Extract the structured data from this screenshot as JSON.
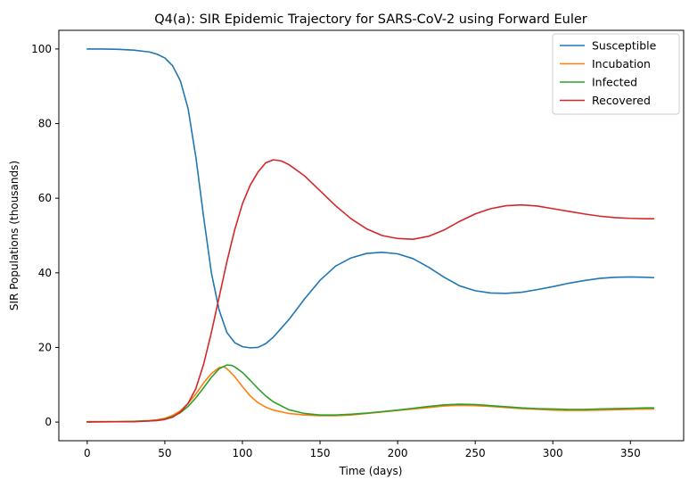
{
  "chart_data": {
    "type": "line",
    "title": "Q4(a): SIR Epidemic Trajectory for SARS-CoV-2 using Forward Euler",
    "xlabel": "Time (days)",
    "ylabel": "SIR Populations (thousands)",
    "xlim": [
      -18.3,
      384.3
    ],
    "ylim": [
      -5,
      105
    ],
    "xticks": [
      0,
      50,
      100,
      150,
      200,
      250,
      300,
      350
    ],
    "yticks": [
      0,
      20,
      40,
      60,
      80,
      100
    ],
    "grid": false,
    "legend_position": "top-right",
    "series": [
      {
        "name": "Susceptible",
        "color": "#1f77b4",
        "points": [
          [
            0,
            100
          ],
          [
            10,
            100
          ],
          [
            20,
            99.9
          ],
          [
            30,
            99.7
          ],
          [
            40,
            99.2
          ],
          [
            45,
            98.6
          ],
          [
            50,
            97.6
          ],
          [
            55,
            95.5
          ],
          [
            60,
            91.5
          ],
          [
            65,
            84
          ],
          [
            70,
            71
          ],
          [
            75,
            55
          ],
          [
            80,
            40
          ],
          [
            85,
            30
          ],
          [
            90,
            24
          ],
          [
            95,
            21.3
          ],
          [
            100,
            20.2
          ],
          [
            105,
            19.9
          ],
          [
            110,
            20
          ],
          [
            115,
            21
          ],
          [
            120,
            22.8
          ],
          [
            130,
            27.5
          ],
          [
            140,
            33
          ],
          [
            150,
            38
          ],
          [
            160,
            41.8
          ],
          [
            170,
            44
          ],
          [
            180,
            45.2
          ],
          [
            190,
            45.5
          ],
          [
            200,
            45.1
          ],
          [
            210,
            43.8
          ],
          [
            220,
            41.5
          ],
          [
            230,
            38.8
          ],
          [
            240,
            36.5
          ],
          [
            250,
            35.2
          ],
          [
            260,
            34.6
          ],
          [
            270,
            34.5
          ],
          [
            280,
            34.8
          ],
          [
            290,
            35.5
          ],
          [
            300,
            36.3
          ],
          [
            310,
            37.2
          ],
          [
            320,
            37.9
          ],
          [
            330,
            38.5
          ],
          [
            340,
            38.8
          ],
          [
            350,
            38.9
          ],
          [
            360,
            38.8
          ],
          [
            365,
            38.7
          ]
        ]
      },
      {
        "name": "Incubation",
        "color": "#ff7f0e",
        "points": [
          [
            0,
            0.1
          ],
          [
            20,
            0.1
          ],
          [
            30,
            0.2
          ],
          [
            40,
            0.4
          ],
          [
            45,
            0.6
          ],
          [
            50,
            1
          ],
          [
            55,
            1.8
          ],
          [
            60,
            3
          ],
          [
            65,
            5
          ],
          [
            70,
            7.5
          ],
          [
            75,
            10.5
          ],
          [
            80,
            13
          ],
          [
            85,
            14.6
          ],
          [
            88,
            14.8
          ],
          [
            90,
            14.3
          ],
          [
            95,
            12.2
          ],
          [
            100,
            9.5
          ],
          [
            105,
            7
          ],
          [
            110,
            5.2
          ],
          [
            115,
            4
          ],
          [
            120,
            3.2
          ],
          [
            130,
            2.3
          ],
          [
            140,
            1.9
          ],
          [
            150,
            1.7
          ],
          [
            160,
            1.7
          ],
          [
            170,
            1.9
          ],
          [
            180,
            2.3
          ],
          [
            190,
            2.7
          ],
          [
            200,
            3.1
          ],
          [
            210,
            3.5
          ],
          [
            220,
            3.9
          ],
          [
            230,
            4.3
          ],
          [
            240,
            4.5
          ],
          [
            250,
            4.4
          ],
          [
            260,
            4.2
          ],
          [
            270,
            3.9
          ],
          [
            280,
            3.6
          ],
          [
            290,
            3.4
          ],
          [
            300,
            3.2
          ],
          [
            310,
            3.1
          ],
          [
            320,
            3.1
          ],
          [
            330,
            3.2
          ],
          [
            340,
            3.3
          ],
          [
            350,
            3.4
          ],
          [
            360,
            3.5
          ],
          [
            365,
            3.5
          ]
        ]
      },
      {
        "name": "Infected",
        "color": "#2ca02c",
        "points": [
          [
            0,
            0.1
          ],
          [
            20,
            0.1
          ],
          [
            30,
            0.2
          ],
          [
            40,
            0.3
          ],
          [
            45,
            0.5
          ],
          [
            50,
            0.8
          ],
          [
            55,
            1.5
          ],
          [
            60,
            2.5
          ],
          [
            65,
            4.2
          ],
          [
            70,
            6.5
          ],
          [
            75,
            9.2
          ],
          [
            80,
            12
          ],
          [
            85,
            14.3
          ],
          [
            90,
            15.3
          ],
          [
            93,
            15.2
          ],
          [
            95,
            14.8
          ],
          [
            100,
            13.3
          ],
          [
            105,
            11.2
          ],
          [
            110,
            9
          ],
          [
            115,
            7
          ],
          [
            120,
            5.4
          ],
          [
            130,
            3.3
          ],
          [
            140,
            2.3
          ],
          [
            150,
            1.9
          ],
          [
            160,
            1.9
          ],
          [
            170,
            2.1
          ],
          [
            180,
            2.4
          ],
          [
            190,
            2.8
          ],
          [
            200,
            3.2
          ],
          [
            210,
            3.7
          ],
          [
            220,
            4.2
          ],
          [
            230,
            4.6
          ],
          [
            240,
            4.8
          ],
          [
            250,
            4.7
          ],
          [
            260,
            4.4
          ],
          [
            270,
            4.1
          ],
          [
            280,
            3.8
          ],
          [
            290,
            3.6
          ],
          [
            300,
            3.5
          ],
          [
            310,
            3.4
          ],
          [
            320,
            3.4
          ],
          [
            330,
            3.5
          ],
          [
            340,
            3.6
          ],
          [
            350,
            3.7
          ],
          [
            360,
            3.8
          ],
          [
            365,
            3.8
          ]
        ]
      },
      {
        "name": "Recovered",
        "color": "#d62728",
        "points": [
          [
            0,
            0
          ],
          [
            20,
            0.1
          ],
          [
            30,
            0.1
          ],
          [
            40,
            0.3
          ],
          [
            45,
            0.4
          ],
          [
            50,
            0.7
          ],
          [
            55,
            1.3
          ],
          [
            60,
            2.7
          ],
          [
            65,
            5
          ],
          [
            70,
            9
          ],
          [
            75,
            15.5
          ],
          [
            80,
            24
          ],
          [
            85,
            33.5
          ],
          [
            90,
            43
          ],
          [
            95,
            51.5
          ],
          [
            100,
            58.5
          ],
          [
            105,
            63.5
          ],
          [
            110,
            67
          ],
          [
            115,
            69.5
          ],
          [
            120,
            70.3
          ],
          [
            125,
            70
          ],
          [
            130,
            69
          ],
          [
            140,
            66
          ],
          [
            150,
            62
          ],
          [
            160,
            58
          ],
          [
            170,
            54.5
          ],
          [
            180,
            51.8
          ],
          [
            190,
            50
          ],
          [
            200,
            49.2
          ],
          [
            210,
            49
          ],
          [
            220,
            49.8
          ],
          [
            230,
            51.5
          ],
          [
            240,
            53.8
          ],
          [
            250,
            55.8
          ],
          [
            260,
            57.2
          ],
          [
            270,
            58
          ],
          [
            280,
            58.2
          ],
          [
            290,
            57.9
          ],
          [
            300,
            57.2
          ],
          [
            310,
            56.5
          ],
          [
            320,
            55.8
          ],
          [
            330,
            55.2
          ],
          [
            340,
            54.8
          ],
          [
            350,
            54.6
          ],
          [
            360,
            54.5
          ],
          [
            365,
            54.5
          ]
        ]
      }
    ]
  }
}
